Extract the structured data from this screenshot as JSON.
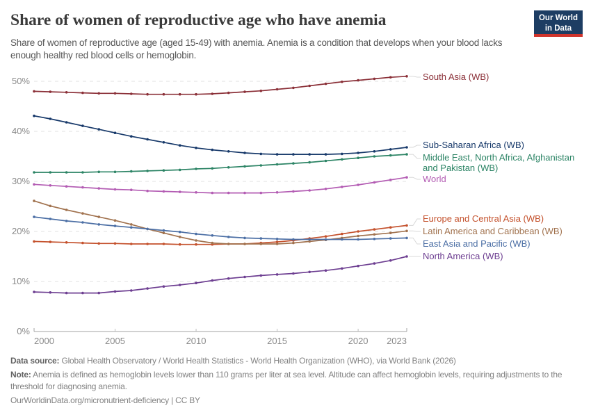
{
  "header": {
    "title": "Share of women of reproductive age who have anemia",
    "subtitle": "Share of women of reproductive age (aged 15-49) with anemia. Anemia is a condition that develops when your blood lacks enough healthy red blood cells or hemoglobin.",
    "logo": {
      "line1": "Our World",
      "line2": "in Data",
      "bg_color": "#1d3d63",
      "stripe_color": "#d0342c"
    }
  },
  "chart_data": {
    "type": "line",
    "title": "Share of women of reproductive age who have anemia",
    "xlabel": "",
    "ylabel": "",
    "xlim": [
      2000,
      2023
    ],
    "ylim": [
      0,
      50
    ],
    "grid": true,
    "legend_position": "right-of-lines",
    "x": [
      2000,
      2001,
      2002,
      2003,
      2004,
      2005,
      2006,
      2007,
      2008,
      2009,
      2010,
      2011,
      2012,
      2013,
      2014,
      2015,
      2016,
      2017,
      2018,
      2019,
      2020,
      2021,
      2022,
      2023
    ],
    "x_ticks": [
      2000,
      2005,
      2010,
      2015,
      2020,
      2023
    ],
    "x_tick_labels": [
      "2000",
      "2005",
      "2010",
      "2015",
      "2020",
      "2023"
    ],
    "y_ticks": [
      0,
      10,
      20,
      30,
      40,
      50
    ],
    "y_tick_labels": [
      "0%",
      "10%",
      "20%",
      "30%",
      "40%",
      "50%"
    ],
    "series": [
      {
        "name": "South Asia (WB)",
        "color": "#8B3038",
        "values": [
          48.0,
          47.9,
          47.8,
          47.7,
          47.6,
          47.6,
          47.5,
          47.4,
          47.4,
          47.4,
          47.4,
          47.5,
          47.7,
          47.9,
          48.1,
          48.4,
          48.7,
          49.1,
          49.5,
          49.9,
          50.2,
          50.5,
          50.8,
          51.0
        ]
      },
      {
        "name": "Sub-Saharan Africa (WB)",
        "color": "#17396A",
        "values": [
          43.1,
          42.5,
          41.8,
          41.1,
          40.4,
          39.7,
          39.0,
          38.4,
          37.8,
          37.2,
          36.7,
          36.3,
          36.0,
          35.7,
          35.5,
          35.4,
          35.4,
          35.4,
          35.4,
          35.5,
          35.7,
          36.0,
          36.4,
          36.8
        ]
      },
      {
        "name": "Middle East, North Africa, Afghanistan and Pakistan (WB)",
        "color": "#2C8465",
        "values": [
          31.8,
          31.8,
          31.8,
          31.8,
          31.9,
          31.9,
          32.0,
          32.1,
          32.2,
          32.3,
          32.5,
          32.6,
          32.8,
          33.0,
          33.2,
          33.4,
          33.6,
          33.8,
          34.1,
          34.4,
          34.7,
          35.0,
          35.2,
          35.4
        ]
      },
      {
        "name": "World",
        "color": "#B35CB3",
        "values": [
          29.4,
          29.2,
          29.0,
          28.8,
          28.6,
          28.4,
          28.3,
          28.1,
          28.0,
          27.9,
          27.8,
          27.7,
          27.7,
          27.7,
          27.7,
          27.8,
          28.0,
          28.2,
          28.5,
          28.9,
          29.3,
          29.8,
          30.3,
          30.8
        ]
      },
      {
        "name": "Europe and Central Asia (WB)",
        "color": "#C4512C",
        "values": [
          18.0,
          17.9,
          17.8,
          17.7,
          17.6,
          17.6,
          17.5,
          17.5,
          17.5,
          17.4,
          17.4,
          17.4,
          17.5,
          17.5,
          17.7,
          17.9,
          18.2,
          18.6,
          19.0,
          19.5,
          20.0,
          20.4,
          20.8,
          21.2
        ]
      },
      {
        "name": "Latin America and Caribbean (WB)",
        "color": "#A1724E",
        "values": [
          26.1,
          25.1,
          24.3,
          23.6,
          22.9,
          22.2,
          21.4,
          20.5,
          19.7,
          18.9,
          18.2,
          17.7,
          17.5,
          17.5,
          17.5,
          17.5,
          17.7,
          18.0,
          18.3,
          18.7,
          19.1,
          19.4,
          19.7,
          20.1
        ]
      },
      {
        "name": "East Asia and Pacific (WB)",
        "color": "#4C6FA5",
        "values": [
          22.9,
          22.5,
          22.1,
          21.8,
          21.4,
          21.1,
          20.8,
          20.5,
          20.2,
          19.9,
          19.5,
          19.2,
          18.9,
          18.7,
          18.6,
          18.5,
          18.4,
          18.4,
          18.4,
          18.4,
          18.4,
          18.5,
          18.6,
          18.7
        ]
      },
      {
        "name": "North America (WB)",
        "color": "#6D3E91",
        "values": [
          7.9,
          7.8,
          7.7,
          7.7,
          7.7,
          8.0,
          8.2,
          8.6,
          9.0,
          9.3,
          9.7,
          10.2,
          10.6,
          10.9,
          11.2,
          11.4,
          11.6,
          11.9,
          12.2,
          12.6,
          13.1,
          13.6,
          14.2,
          15.0
        ]
      }
    ]
  },
  "footer": {
    "datasource_label": "Data source:",
    "datasource_text": "Global Health Observatory / World Health Statistics - World Health Organization (WHO), via World Bank (2026)",
    "note_label": "Note:",
    "note_text": "Anemia is defined as hemoglobin levels lower than 110 grams per liter at sea level. Altitude can affect hemoglobin levels, requiring adjustments to the threshold for diagnosing anemia.",
    "link": "OurWorldinData.org/micronutrient-deficiency | CC BY"
  }
}
